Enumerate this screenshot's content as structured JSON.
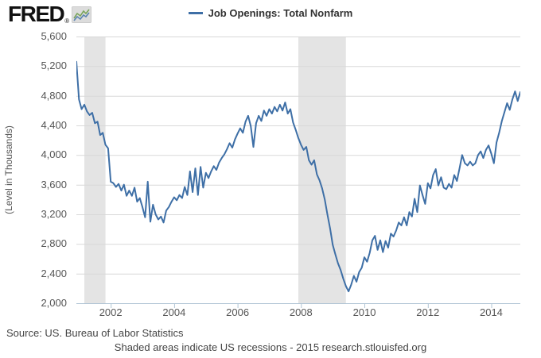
{
  "header": {
    "logo_text": "FRED",
    "registered_mark": "®",
    "legend": {
      "label": "Job Openings: Total Nonfarm",
      "line_color": "#3e6fa6"
    }
  },
  "y_axis": {
    "title": "(Level in Thousands)",
    "ticks": [
      "5,600",
      "5,200",
      "4,800",
      "4,400",
      "4,000",
      "3,600",
      "3,200",
      "2,800",
      "2,400",
      "2,000"
    ]
  },
  "x_axis": {
    "ticks": [
      "2002",
      "2004",
      "2006",
      "2008",
      "2010",
      "2012",
      "2014"
    ]
  },
  "footer": {
    "source": "Source: US. Bureau of Labor Statistics",
    "note": "Shaded areas indicate US recessions - 2015 research.stlouisfed.org"
  },
  "chart_data": {
    "type": "line",
    "title": "Job Openings: Total Nonfarm",
    "ylabel": "(Level in Thousands)",
    "frequency": "monthly",
    "start": "2000-12",
    "end": "2014-12",
    "ylim": [
      2000,
      5600
    ],
    "ytick_step": 400,
    "grid": "horizontal",
    "legend_position": "top-center",
    "line_color": "#3e6fa6",
    "recession_color": "#e4e4e4",
    "grid_color": "#d8d8d8",
    "axis_color": "#b0c4d4",
    "recessions": [
      {
        "start": "2001-03",
        "end": "2001-11"
      },
      {
        "start": "2007-12",
        "end": "2009-06"
      }
    ],
    "values": [
      5260,
      4750,
      4620,
      4680,
      4590,
      4540,
      4570,
      4430,
      4450,
      4270,
      4300,
      4140,
      4090,
      3640,
      3620,
      3570,
      3610,
      3520,
      3600,
      3450,
      3520,
      3450,
      3560,
      3370,
      3420,
      3300,
      3160,
      3640,
      3100,
      3330,
      3200,
      3130,
      3170,
      3090,
      3250,
      3300,
      3370,
      3430,
      3390,
      3460,
      3420,
      3570,
      3460,
      3780,
      3500,
      3820,
      3460,
      3840,
      3560,
      3760,
      3690,
      3780,
      3850,
      3800,
      3900,
      3960,
      4010,
      4080,
      4160,
      4100,
      4210,
      4290,
      4360,
      4300,
      4450,
      4530,
      4390,
      4110,
      4430,
      4530,
      4460,
      4600,
      4530,
      4620,
      4560,
      4650,
      4590,
      4680,
      4600,
      4710,
      4560,
      4620,
      4440,
      4340,
      4230,
      4140,
      4070,
      4110,
      3930,
      3870,
      3930,
      3740,
      3660,
      3550,
      3400,
      3200,
      3010,
      2790,
      2660,
      2540,
      2450,
      2330,
      2230,
      2160,
      2250,
      2370,
      2290,
      2420,
      2480,
      2620,
      2560,
      2680,
      2850,
      2910,
      2720,
      2850,
      2690,
      2840,
      2750,
      2940,
      2900,
      2980,
      3090,
      3050,
      3160,
      3050,
      3230,
      3170,
      3410,
      3230,
      3590,
      3460,
      3340,
      3620,
      3550,
      3730,
      3810,
      3590,
      3700,
      3560,
      3540,
      3610,
      3560,
      3730,
      3650,
      3820,
      4000,
      3890,
      3860,
      3910,
      3860,
      3890,
      4000,
      4050,
      3960,
      4070,
      4130,
      4020,
      3890,
      4170,
      4300,
      4460,
      4580,
      4700,
      4610,
      4750,
      4860,
      4730,
      4850
    ]
  }
}
